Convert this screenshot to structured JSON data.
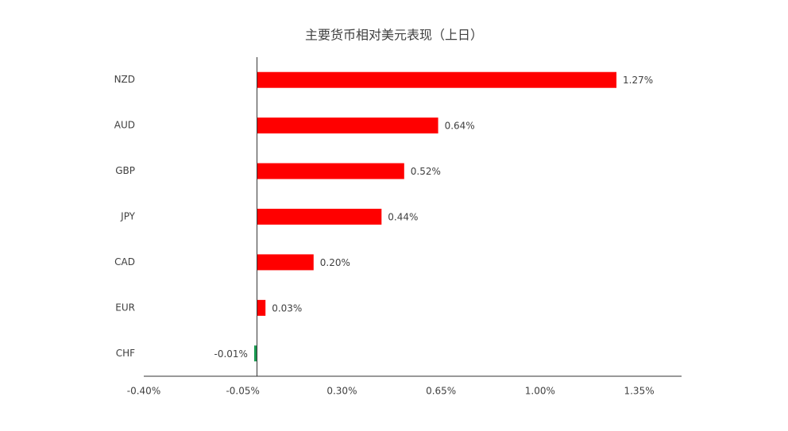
{
  "chart_data": {
    "type": "hbar",
    "title": "主要货币相对美元表现（上日）",
    "categories": [
      "NZD",
      "AUD",
      "GBP",
      "JPY",
      "CAD",
      "EUR",
      "CHF"
    ],
    "values": [
      1.27,
      0.64,
      0.52,
      0.44,
      0.2,
      0.03,
      -0.01
    ],
    "value_labels": [
      "1.27%",
      "0.64%",
      "0.52%",
      "0.44%",
      "0.20%",
      "0.03%",
      "-0.01%"
    ],
    "color": "#ff0000",
    "negative_color": "#1a9850",
    "xlim": [
      -0.4,
      1.5
    ],
    "xticks": [
      {
        "value": -0.4,
        "label": "-0.40%"
      },
      {
        "value": -0.05,
        "label": "-0.05%"
      },
      {
        "value": 0.3,
        "label": "0.30%"
      },
      {
        "value": 0.65,
        "label": "0.65%"
      },
      {
        "value": 1.0,
        "label": "1.00%"
      },
      {
        "value": 1.35,
        "label": "1.35%"
      }
    ],
    "grid": false
  }
}
